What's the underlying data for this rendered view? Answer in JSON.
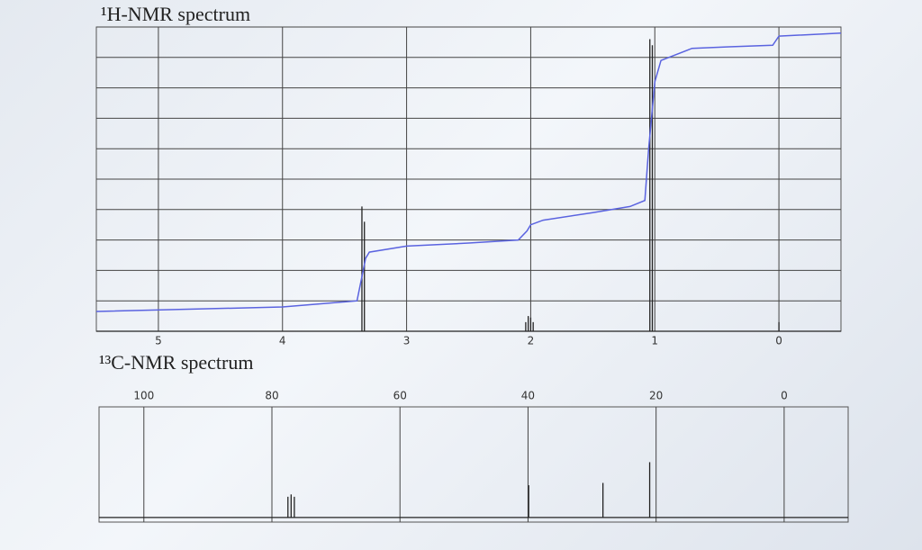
{
  "chart_data": [
    {
      "type": "spectrum",
      "title": "¹H-NMR spectrum",
      "xaxis_position": "bottom",
      "grid": true,
      "xlim": [
        5.5,
        -0.5
      ],
      "xticks": [
        5,
        4,
        3,
        2,
        1,
        0
      ],
      "ylim": [
        0,
        10
      ],
      "yticks": [
        0,
        1,
        2,
        3,
        4,
        5,
        6,
        7,
        8,
        9,
        10
      ],
      "series": [
        {
          "style": "sticks",
          "color": "#222222",
          "x": [
            3.36,
            3.34,
            2.04,
            2.02,
            2.0,
            1.98,
            1.04,
            1.02,
            0.0
          ],
          "values": [
            4.1,
            3.6,
            0.3,
            0.5,
            0.45,
            0.3,
            9.6,
            9.4,
            0.3
          ]
        },
        {
          "style": "line",
          "color": "#5a63e0",
          "x": [
            5.5,
            4.0,
            3.4,
            3.36,
            3.33,
            3.3,
            3.0,
            2.5,
            2.1,
            2.03,
            2.0,
            1.9,
            1.5,
            1.2,
            1.08,
            1.05,
            1.0,
            0.95,
            0.7,
            0.4,
            0.05,
            0.0,
            -0.5
          ],
          "values": [
            0.65,
            0.8,
            1.0,
            1.8,
            2.4,
            2.6,
            2.8,
            2.9,
            3.0,
            3.3,
            3.5,
            3.65,
            3.9,
            4.1,
            4.3,
            6.0,
            8.2,
            8.9,
            9.3,
            9.35,
            9.4,
            9.7,
            9.8
          ]
        }
      ]
    },
    {
      "type": "spectrum",
      "title": "¹³C-NMR spectrum",
      "xaxis_position": "top",
      "grid": true,
      "xlim": [
        107,
        -10
      ],
      "xticks": [
        100,
        80,
        60,
        40,
        20,
        0
      ],
      "ylim": [
        -4,
        96
      ],
      "series": [
        {
          "style": "sticks",
          "color": "#222222",
          "x": [
            77.5,
            77.0,
            76.5,
            39.9,
            28.3,
            21.0
          ],
          "values": [
            18,
            20,
            18,
            28,
            30,
            48
          ]
        }
      ]
    }
  ]
}
